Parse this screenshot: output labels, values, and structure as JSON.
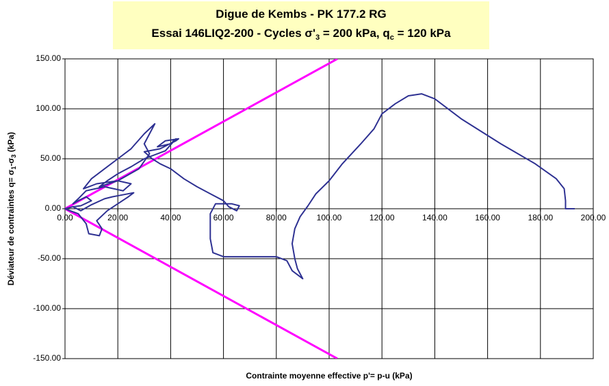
{
  "chart_data": {
    "type": "line",
    "title": [
      "Digue de Kembs - PK 177.2 RG"
    ],
    "subtitle_parts": [
      "Essai 146LIQ2-200   -   Cycles  σ'",
      "3",
      " = 200 kPa, q",
      "c",
      " = 120 kPa"
    ],
    "x_label": "Contrainte moyenne effective p'= p-u (kPa)",
    "y_label_parts": [
      "Déviateur de contraintes q= σ",
      "1",
      "-σ",
      "3",
      " (kPa)"
    ],
    "xlim": [
      0,
      200
    ],
    "ylim": [
      -150,
      150
    ],
    "xticks": [
      {
        "value": 0,
        "label": "0.00"
      },
      {
        "value": 20,
        "label": "20.00"
      },
      {
        "value": 40,
        "label": "40.00"
      },
      {
        "value": 60,
        "label": "60.00"
      },
      {
        "value": 80,
        "label": "80.00"
      },
      {
        "value": 100,
        "label": "100.00"
      },
      {
        "value": 120,
        "label": "120.00"
      },
      {
        "value": 140,
        "label": "140.00"
      },
      {
        "value": 160,
        "label": "160.00"
      },
      {
        "value": 180,
        "label": "180.00"
      },
      {
        "value": 200,
        "label": "200.00"
      }
    ],
    "yticks": [
      {
        "value": -150,
        "label": "-150.00"
      },
      {
        "value": -100,
        "label": "-100.00"
      },
      {
        "value": -50,
        "label": "-50.00"
      },
      {
        "value": 0,
        "label": "0.00"
      },
      {
        "value": 50,
        "label": "50.00"
      },
      {
        "value": 100,
        "label": "100.00"
      },
      {
        "value": 150,
        "label": "150.00"
      }
    ],
    "grid": true,
    "series": [
      {
        "color": "#ff00ff",
        "width": 3,
        "x": [
          0,
          103.1
        ],
        "values": [
          0,
          150
        ]
      },
      {
        "color": "#ff00ff",
        "width": 3,
        "x": [
          0,
          103.1
        ],
        "values": [
          0,
          -150
        ]
      },
      {
        "color": "#2e3192",
        "width": 2,
        "x": [
          193,
          189.5,
          189.5,
          189,
          186,
          178,
          165,
          150,
          140,
          135,
          130,
          125,
          120,
          117,
          112,
          105,
          100,
          95,
          92,
          89,
          87,
          86,
          87,
          88,
          90,
          86,
          84,
          80,
          70,
          60,
          56,
          55,
          55,
          57,
          63,
          66,
          65,
          62,
          60,
          55,
          50,
          45,
          42,
          40,
          36,
          33,
          30,
          36,
          42,
          43,
          38,
          35,
          40,
          42,
          38,
          30,
          25,
          20,
          16,
          13,
          20,
          28,
          32,
          30,
          34,
          30,
          25,
          20,
          15,
          10,
          7,
          12,
          20,
          25,
          22,
          15,
          8,
          5,
          3,
          5,
          8,
          10,
          6,
          3,
          0,
          5,
          8,
          9,
          13,
          14,
          12,
          16,
          20,
          24,
          26,
          22,
          18,
          15,
          10,
          6,
          3
        ],
        "values": [
          0,
          0,
          8,
          20,
          30,
          45,
          65,
          90,
          110,
          115,
          113,
          105,
          95,
          80,
          65,
          45,
          28,
          15,
          3,
          -8,
          -20,
          -35,
          -50,
          -60,
          -70,
          -62,
          -52,
          -48,
          -48,
          -48,
          -44,
          -30,
          -5,
          5,
          5,
          3,
          -2,
          2,
          8,
          15,
          22,
          30,
          36,
          40,
          45,
          50,
          57,
          60,
          68,
          70,
          68,
          62,
          65,
          70,
          58,
          50,
          42,
          35,
          28,
          22,
          28,
          40,
          55,
          65,
          85,
          75,
          60,
          50,
          40,
          30,
          20,
          25,
          28,
          25,
          18,
          22,
          18,
          10,
          5,
          8,
          12,
          8,
          3,
          2,
          0,
          -5,
          -15,
          -25,
          -27,
          -20,
          -12,
          -2,
          5,
          12,
          16,
          14,
          12,
          10,
          4,
          -2,
          2
        ]
      }
    ]
  }
}
